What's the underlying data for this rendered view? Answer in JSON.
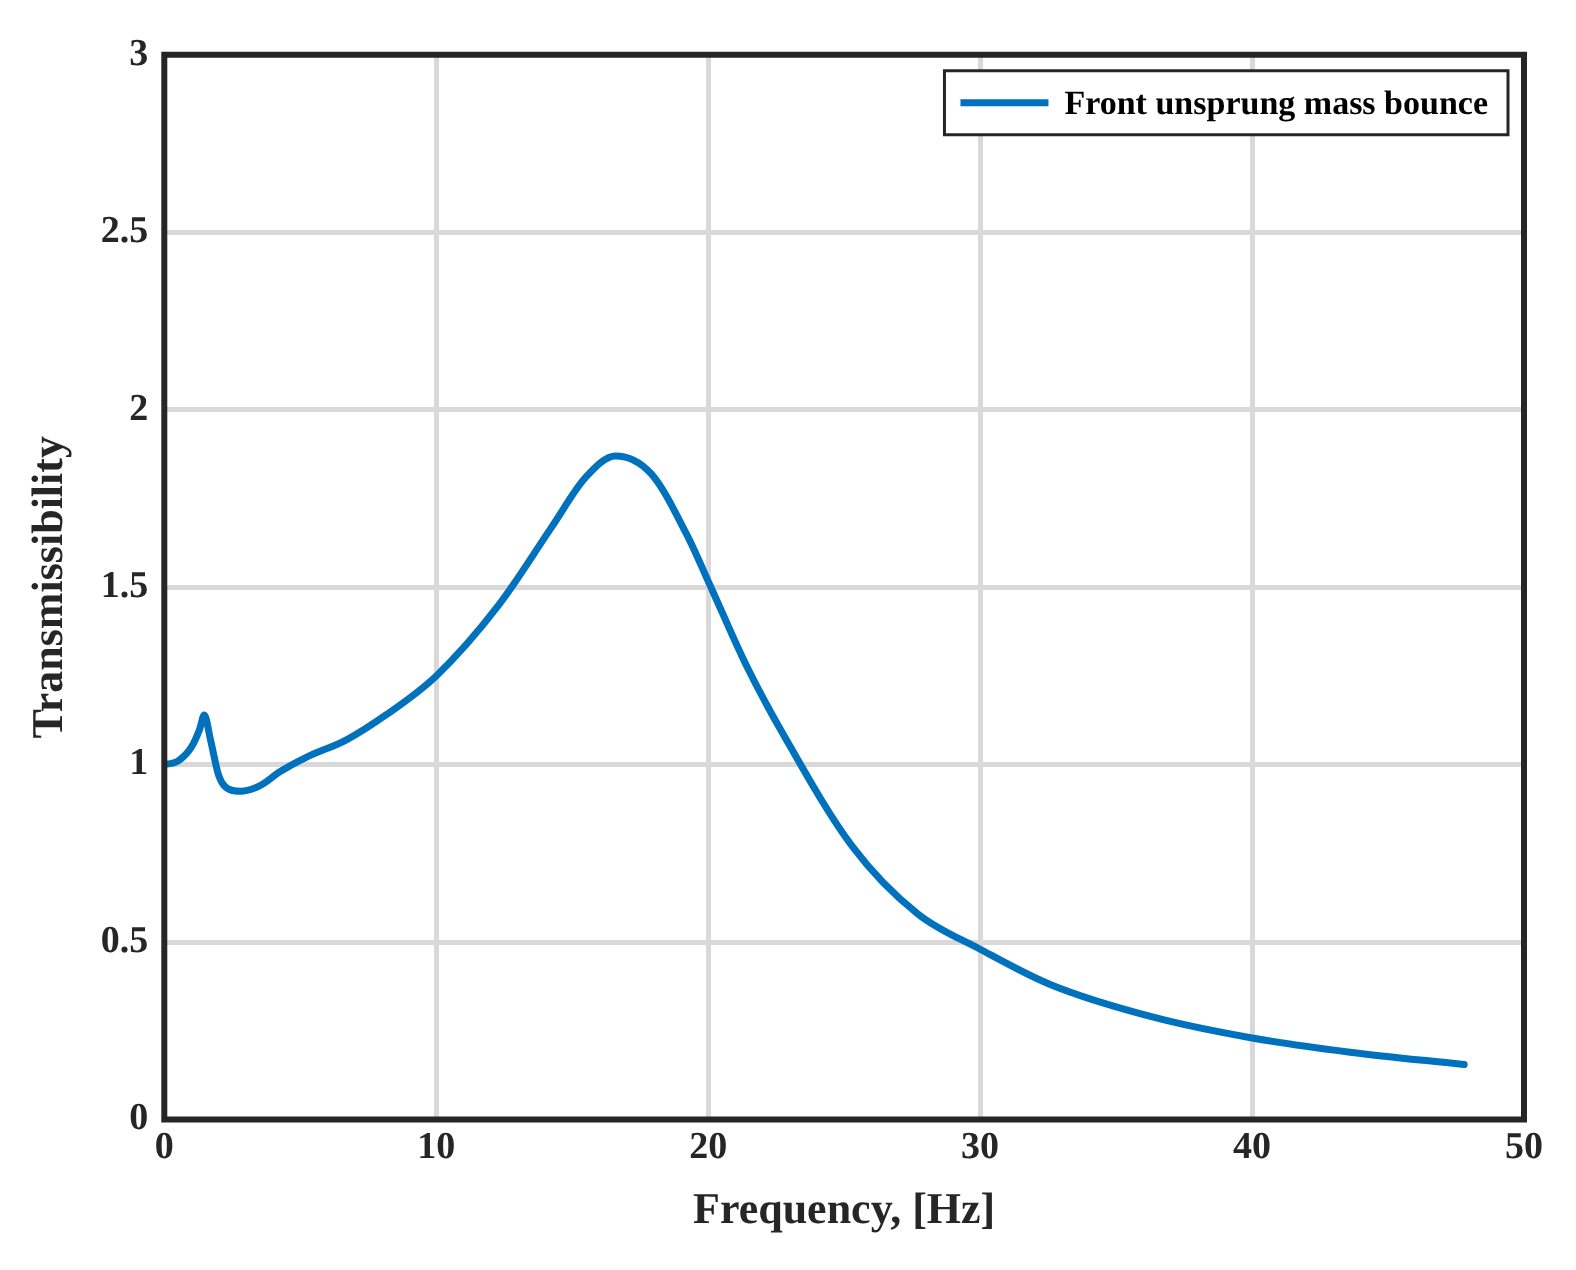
{
  "chart_data": {
    "type": "line",
    "xlabel": "Frequency, [Hz]",
    "ylabel": "Transmissibility",
    "xlim": [
      0,
      50
    ],
    "xticks": [
      0,
      10,
      20,
      30,
      40,
      50
    ],
    "ylim": [
      0,
      3
    ],
    "yticks": [
      0,
      0.5,
      1,
      1.5,
      2,
      2.5,
      3
    ],
    "grid": true,
    "legend": "top right",
    "marker": "none",
    "line_style": "solid",
    "series": [
      {
        "name": "Front unsprung mass bounce",
        "color": "#0072bd",
        "x": [
          0,
          0.5,
          1.0,
          1.3,
          1.47,
          1.7,
          2.0,
          2.4,
          2.8,
          3.5,
          4.25,
          5.2,
          6.7,
          8.15,
          10,
          12.3,
          14.25,
          15.5,
          16.6,
          17.9,
          19.2,
          20.1,
          21.4,
          22.8,
          25.3,
          27.7,
          30,
          32.6,
          36.3,
          40,
          43.6,
          47.8
        ],
        "values": [
          1.0,
          1.01,
          1.05,
          1.1,
          1.14,
          1.07,
          0.97,
          0.93,
          0.925,
          0.94,
          0.98,
          1.02,
          1.07,
          1.14,
          1.25,
          1.45,
          1.67,
          1.81,
          1.87,
          1.82,
          1.65,
          1.5,
          1.28,
          1.08,
          0.77,
          0.58,
          0.48,
          0.38,
          0.29,
          0.23,
          0.19,
          0.155
        ]
      }
    ]
  }
}
